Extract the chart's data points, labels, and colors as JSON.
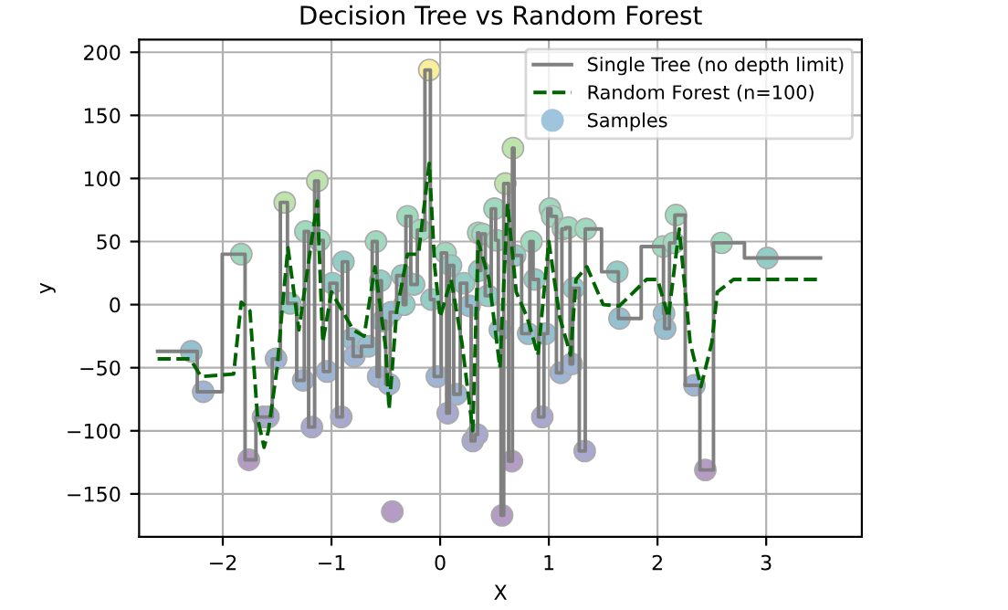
{
  "chart_data": {
    "type": "scatter",
    "title": "Decision Tree vs Random Forest",
    "xlabel": "X",
    "ylabel": "y",
    "xlim": [
      -2.77,
      3.88
    ],
    "ylim": [
      -184,
      210
    ],
    "xticks": [
      {
        "value": -2,
        "label": "−2"
      },
      {
        "value": -1,
        "label": "−1"
      },
      0,
      1,
      2,
      3
    ],
    "yticks": [
      {
        "value": -150,
        "label": "−150"
      },
      {
        "value": -100,
        "label": "−100"
      },
      {
        "value": -50,
        "label": "−50"
      },
      0,
      50,
      100,
      150,
      200
    ],
    "grid": true,
    "legend": "top right",
    "series": [
      {
        "name": "Single Tree (no depth limit)",
        "type": "step",
        "color": "#808080",
        "line_style": "solid",
        "marker": "none",
        "x": [
          -2.6,
          -2.29,
          -2.18,
          -1.83,
          -1.76,
          -1.63,
          -1.58,
          -1.51,
          -1.43,
          -1.38,
          -1.26,
          -1.24,
          -1.18,
          -1.13,
          -1.11,
          -1.04,
          -0.99,
          -0.91,
          -0.89,
          -0.81,
          -0.79,
          -0.66,
          -0.59,
          -0.57,
          -0.55,
          -0.53,
          -0.47,
          -0.45,
          -0.35,
          -0.33,
          -0.3,
          -0.24,
          -0.18,
          -0.1,
          -0.08,
          -0.03,
          0.05,
          0.07,
          0.1,
          0.15,
          0.22,
          0.27,
          0.3,
          0.34,
          0.35,
          0.36,
          0.39,
          0.44,
          0.5,
          0.52,
          0.55,
          0.57,
          0.6,
          0.66,
          0.67,
          0.69,
          0.81,
          0.84,
          0.87,
          0.94,
          0.97,
          1.01,
          1.03,
          1.11,
          1.13,
          1.18,
          1.21,
          1.23,
          1.33,
          1.34,
          1.63,
          1.65,
          2.05,
          2.06,
          2.07,
          2.15,
          2.17,
          2.34,
          2.44,
          2.59,
          3.01,
          3.5
        ],
        "values": [
          -37,
          -37,
          -69,
          40,
          -123,
          -89,
          -89,
          -43,
          81,
          1,
          -60,
          58,
          -97,
          98,
          51,
          -53,
          17,
          -89,
          34,
          -27,
          -41,
          -33,
          50,
          -57,
          19,
          -13,
          -63,
          -6,
          23,
          0,
          70,
          16,
          59,
          186,
          4,
          -57,
          41,
          -86,
          31,
          -71,
          17,
          -1,
          -108,
          -103,
          57,
          27,
          56,
          7,
          76,
          51,
          -20,
          -167,
          96,
          -124,
          124,
          39,
          -23,
          50,
          20,
          -89,
          -23,
          76,
          70,
          -54,
          60,
          61,
          -47,
          13,
          -116,
          60,
          26,
          -11,
          46,
          -7,
          -19,
          49,
          71,
          -64,
          -131,
          49,
          37,
          37
        ]
      },
      {
        "name": "Random Forest (n=100)",
        "type": "line",
        "color": "#006400",
        "line_style": "dashed",
        "marker": "none",
        "x": [
          -2.6,
          -2.3,
          -2.2,
          -1.9,
          -1.83,
          -1.75,
          -1.68,
          -1.62,
          -1.58,
          -1.5,
          -1.45,
          -1.4,
          -1.3,
          -1.2,
          -1.13,
          -1.08,
          -1.0,
          -0.9,
          -0.8,
          -0.7,
          -0.6,
          -0.5,
          -0.47,
          -0.4,
          -0.3,
          -0.2,
          -0.1,
          -0.05,
          0.0,
          0.1,
          0.2,
          0.3,
          0.35,
          0.45,
          0.55,
          0.62,
          0.7,
          0.8,
          0.9,
          1.0,
          1.1,
          1.2,
          1.25,
          1.35,
          1.5,
          1.65,
          1.9,
          2.0,
          2.1,
          2.2,
          2.3,
          2.4,
          2.5,
          2.55,
          2.7,
          2.8,
          3.5
        ],
        "values": [
          -43,
          -43,
          -57,
          -55,
          2,
          -5,
          -90,
          -113,
          -100,
          -50,
          0,
          45,
          -20,
          40,
          82,
          -30,
          10,
          -5,
          -20,
          -25,
          30,
          -35,
          -83,
          -5,
          40,
          40,
          112,
          30,
          -10,
          20,
          -30,
          -100,
          50,
          20,
          -50,
          80,
          10,
          -10,
          -40,
          50,
          -10,
          -40,
          20,
          30,
          0,
          -1,
          20,
          20,
          -10,
          60,
          -30,
          -65,
          -30,
          10,
          20,
          20,
          20
        ]
      },
      {
        "name": "Samples",
        "color": "#9fc5dd",
        "marker": "circle",
        "x": [
          -2.29,
          -2.18,
          -1.83,
          -1.76,
          -1.63,
          -1.58,
          -1.51,
          -1.43,
          -1.38,
          -1.26,
          -1.24,
          -1.18,
          -1.13,
          -1.11,
          -1.04,
          -0.99,
          -0.91,
          -0.89,
          -0.81,
          -0.79,
          -0.66,
          -0.59,
          -0.57,
          -0.55,
          -0.53,
          -0.47,
          -0.45,
          -0.44,
          -0.35,
          -0.33,
          -0.3,
          -0.24,
          -0.18,
          -0.1,
          -0.08,
          -0.03,
          0.05,
          0.07,
          0.1,
          0.15,
          0.22,
          0.27,
          0.3,
          0.34,
          0.35,
          0.36,
          0.39,
          0.44,
          0.5,
          0.52,
          0.55,
          0.57,
          0.6,
          0.66,
          0.67,
          0.69,
          0.81,
          0.84,
          0.87,
          0.94,
          0.97,
          1.01,
          1.03,
          1.11,
          1.13,
          1.18,
          1.21,
          1.23,
          1.33,
          1.34,
          1.63,
          1.65,
          2.05,
          2.06,
          2.07,
          2.15,
          2.17,
          2.34,
          2.44,
          2.59,
          3.01
        ],
        "values": [
          -37,
          -69,
          40,
          -123,
          -89,
          -89,
          -43,
          81,
          1,
          -60,
          58,
          -97,
          98,
          51,
          -53,
          17,
          -89,
          34,
          -27,
          -41,
          -33,
          50,
          -57,
          19,
          -13,
          -63,
          -6,
          -164,
          23,
          0,
          70,
          16,
          59,
          186,
          4,
          -57,
          41,
          -86,
          31,
          -71,
          17,
          -1,
          -108,
          -103,
          57,
          27,
          56,
          7,
          76,
          51,
          -20,
          -167,
          96,
          -124,
          124,
          39,
          -23,
          50,
          20,
          -89,
          -23,
          76,
          70,
          -54,
          60,
          61,
          -47,
          13,
          -116,
          60,
          26,
          -11,
          46,
          -7,
          -19,
          49,
          71,
          -64,
          -131,
          49,
          37
        ],
        "colors": [
          "#96c0d0",
          "#9fb5d3",
          "#a0d9bd",
          "#b49cc4",
          "#a9a9cf",
          "#a9a9cf",
          "#9fb5d3",
          "#bfe3ad",
          "#93cdc6",
          "#9fb5d3",
          "#a0d9bd",
          "#a9a9cf",
          "#bfe3ad",
          "#a0d9bd",
          "#9fb5d3",
          "#93cdc6",
          "#a9a9cf",
          "#93cdc6",
          "#96c0d0",
          "#9fb5d3",
          "#96c0d0",
          "#a0d9bd",
          "#9fb5d3",
          "#93cdc6",
          "#96c0d0",
          "#9fb5d3",
          "#96c0d0",
          "#b49cc4",
          "#93cdc6",
          "#93cdc6",
          "#a0d9bd",
          "#93cdc6",
          "#a0d9bd",
          "#f9ef9a",
          "#93cdc6",
          "#9fb5d3",
          "#a0d9bd",
          "#a9a9cf",
          "#93cdc6",
          "#9fb5d3",
          "#93cdc6",
          "#96c0d0",
          "#a9a9cf",
          "#a9a9cf",
          "#a0d9bd",
          "#93cdc6",
          "#a0d9bd",
          "#93cdc6",
          "#a0d9bd",
          "#a0d9bd",
          "#96c0d0",
          "#b49cc4",
          "#bfe3ad",
          "#b49cc4",
          "#bfe3ad",
          "#93cdc6",
          "#96c0d0",
          "#a0d9bd",
          "#93cdc6",
          "#a9a9cf",
          "#96c0d0",
          "#a0d9bd",
          "#a0d9bd",
          "#9fb5d3",
          "#a0d9bd",
          "#a0d9bd",
          "#9fb5d3",
          "#93cdc6",
          "#a9a9cf",
          "#a0d9bd",
          "#93cdc6",
          "#96c0d0",
          "#a0d9bd",
          "#96c0d0",
          "#96c0d0",
          "#a0d9bd",
          "#a0d9bd",
          "#9fb5d3",
          "#b49cc4",
          "#a0d9bd",
          "#93cdc6"
        ]
      }
    ]
  }
}
